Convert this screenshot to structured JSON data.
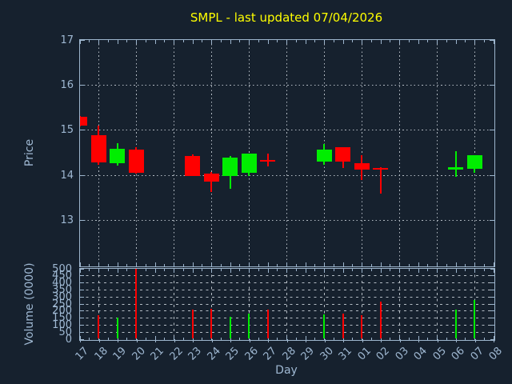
{
  "title": {
    "text": "SMPL - last updated 07/04/2026"
  },
  "colors": {
    "background": "#16212e",
    "text": "#9fb8d2",
    "spine": "#9db5cd",
    "grid": "#b4bcc4",
    "up": "#00ee00",
    "down": "#ff0000",
    "title": "#ffff00"
  },
  "chart_data": {
    "type": "candlestick+volume",
    "title": "SMPL - last updated 07/04/2026",
    "x_label": "Day",
    "grid": "on",
    "price_axis": {
      "label": "Price",
      "range": [
        12,
        17
      ],
      "ticks": [
        "13",
        "14",
        "15",
        "16",
        "17"
      ],
      "tick_values": [
        13,
        14,
        15,
        16,
        17
      ],
      "gridline_values": [
        13,
        14,
        15,
        16
      ]
    },
    "volume_axis": {
      "label": "Volume (0000)",
      "range": [
        0,
        500
      ],
      "ticks": [
        "0",
        "50",
        "100",
        "150",
        "200",
        "250",
        "300",
        "350",
        "400",
        "450",
        "500"
      ],
      "tick_values": [
        0,
        50,
        100,
        150,
        200,
        250,
        300,
        350,
        400,
        450,
        500
      ],
      "gridline_values": [
        50,
        100,
        150,
        200,
        250,
        300,
        350,
        400,
        450
      ]
    },
    "categories": [
      "17",
      "18",
      "19",
      "20",
      "21",
      "22",
      "23",
      "24",
      "25",
      "26",
      "27",
      "28",
      "29",
      "30",
      "31",
      "01",
      "02",
      "03",
      "04",
      "05",
      "06",
      "07",
      "08"
    ],
    "grid_days": [
      "18",
      "20",
      "22",
      "24",
      "26",
      "28",
      "30",
      "01",
      "03",
      "05",
      "07"
    ],
    "series": [
      {
        "day": "17",
        "open": 15.29,
        "high": 15.3,
        "low": 15.08,
        "close": 15.09,
        "volume": null,
        "direction": "down"
      },
      {
        "day": "18",
        "open": 14.88,
        "high": 15.09,
        "low": 14.23,
        "close": 14.28,
        "volume": 170,
        "direction": "down"
      },
      {
        "day": "19",
        "open": 14.26,
        "high": 14.7,
        "low": 14.21,
        "close": 14.58,
        "volume": 150,
        "direction": "up"
      },
      {
        "day": "20",
        "open": 14.56,
        "high": 14.62,
        "low": 14.03,
        "close": 14.05,
        "volume": 497,
        "direction": "down"
      },
      {
        "day": "23",
        "open": 14.42,
        "high": 14.45,
        "low": 13.97,
        "close": 13.98,
        "volume": 205,
        "direction": "down"
      },
      {
        "day": "24",
        "open": 14.03,
        "high": 14.06,
        "low": 13.63,
        "close": 13.85,
        "volume": 215,
        "direction": "down"
      },
      {
        "day": "25",
        "open": 13.98,
        "high": 14.42,
        "low": 13.69,
        "close": 14.38,
        "volume": 155,
        "direction": "up"
      },
      {
        "day": "26",
        "open": 14.05,
        "high": 14.48,
        "low": 13.97,
        "close": 14.47,
        "volume": 180,
        "direction": "up"
      },
      {
        "day": "27",
        "open": 14.34,
        "high": 14.47,
        "low": 14.19,
        "close": 14.32,
        "volume": 210,
        "direction": "down"
      },
      {
        "day": "30",
        "open": 14.3,
        "high": 14.68,
        "low": 14.23,
        "close": 14.57,
        "volume": 175,
        "direction": "up"
      },
      {
        "day": "31",
        "open": 14.61,
        "high": 14.62,
        "low": 14.16,
        "close": 14.29,
        "volume": 180,
        "direction": "down"
      },
      {
        "day": "01",
        "open": 14.26,
        "high": 14.43,
        "low": 13.88,
        "close": 14.12,
        "volume": 165,
        "direction": "down"
      },
      {
        "day": "02",
        "open": 14.16,
        "high": 14.17,
        "low": 13.59,
        "close": 14.11,
        "volume": 265,
        "direction": "down"
      },
      {
        "day": "06",
        "open": 14.13,
        "high": 14.52,
        "low": 13.96,
        "close": 14.17,
        "volume": 205,
        "direction": "up"
      },
      {
        "day": "07",
        "open": 14.13,
        "high": 14.44,
        "low": 14.04,
        "close": 14.44,
        "volume": 275,
        "direction": "up"
      }
    ]
  }
}
